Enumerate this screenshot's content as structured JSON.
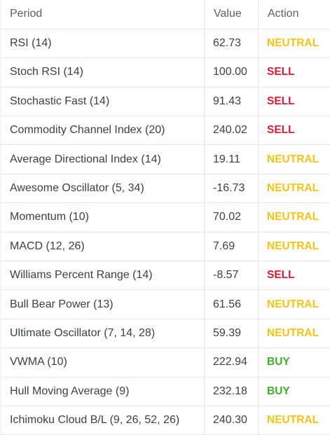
{
  "table": {
    "headers": {
      "period": "Period",
      "value": "Value",
      "action": "Action"
    },
    "rows": [
      {
        "period": "RSI (14)",
        "value": "62.73",
        "action": "NEUTRAL"
      },
      {
        "period": "Stoch RSI (14)",
        "value": "100.00",
        "action": "SELL"
      },
      {
        "period": "Stochastic Fast (14)",
        "value": "91.43",
        "action": "SELL"
      },
      {
        "period": "Commodity Channel Index (20)",
        "value": "240.02",
        "action": "SELL"
      },
      {
        "period": "Average Directional Index (14)",
        "value": "19.11",
        "action": "NEUTRAL"
      },
      {
        "period": "Awesome Oscillator (5, 34)",
        "value": "-16.73",
        "action": "NEUTRAL"
      },
      {
        "period": "Momentum (10)",
        "value": "70.02",
        "action": "NEUTRAL"
      },
      {
        "period": "MACD (12, 26)",
        "value": "7.69",
        "action": "NEUTRAL"
      },
      {
        "period": "Williams Percent Range (14)",
        "value": "-8.57",
        "action": "SELL"
      },
      {
        "period": "Bull Bear Power (13)",
        "value": "61.56",
        "action": "NEUTRAL"
      },
      {
        "period": "Ultimate Oscillator (7, 14, 28)",
        "value": "59.39",
        "action": "NEUTRAL"
      },
      {
        "period": "VWMA (10)",
        "value": "222.94",
        "action": "BUY"
      },
      {
        "period": "Hull Moving Average (9)",
        "value": "232.18",
        "action": "BUY"
      },
      {
        "period": "Ichimoku Cloud B/L (9, 26, 52, 26)",
        "value": "240.30",
        "action": "NEUTRAL"
      }
    ]
  },
  "colors": {
    "neutral": "#f0c419",
    "sell": "#d01f33",
    "buy": "#3fae2a",
    "text": "#3c4048",
    "border": "#e3e6ea"
  }
}
